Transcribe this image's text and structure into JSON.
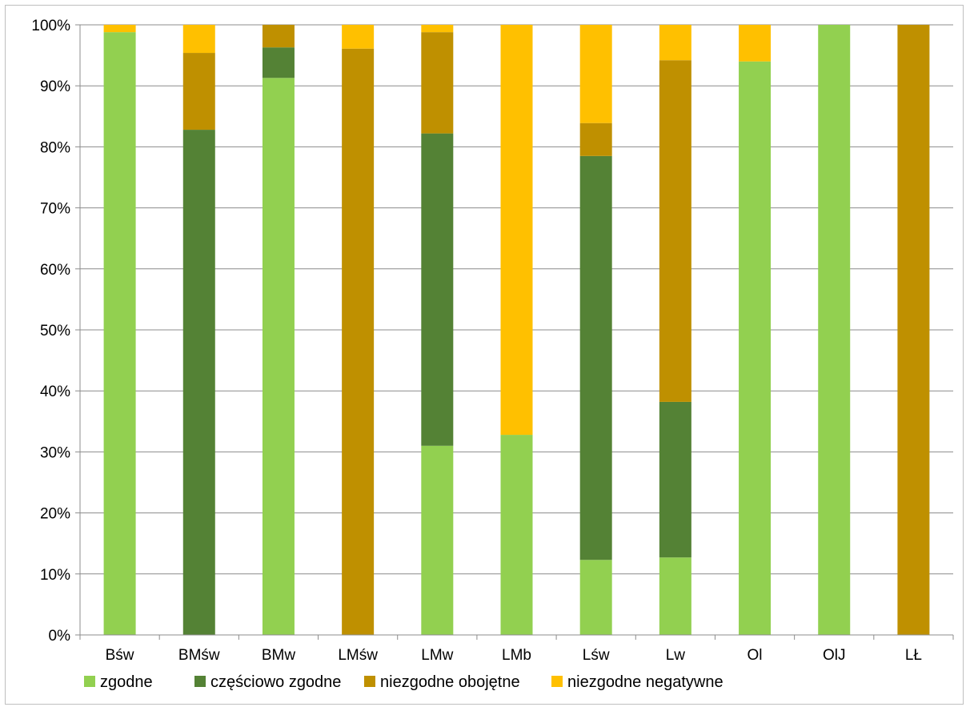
{
  "chart_data": {
    "type": "bar",
    "stacked": true,
    "normalized": true,
    "categories": [
      "Bśw",
      "BMśw",
      "BMw",
      "LMśw",
      "LMw",
      "LMb",
      "Lśw",
      "Lw",
      "Ol",
      "OlJ",
      "LŁ"
    ],
    "series": [
      {
        "name": "zgodne",
        "color": "#92d050",
        "values": [
          98.8,
          0,
          91.3,
          0,
          31.0,
          32.8,
          12.3,
          12.7,
          94.0,
          100,
          0
        ]
      },
      {
        "name": "częściowo zgodne",
        "color": "#548235",
        "values": [
          0,
          82.8,
          5.0,
          0,
          51.2,
          0,
          66.2,
          25.5,
          0,
          0,
          0
        ]
      },
      {
        "name": "niezgodne obojętne",
        "color": "#bf9000",
        "values": [
          0,
          12.6,
          3.7,
          96.1,
          16.6,
          0,
          5.4,
          56.0,
          0,
          0,
          100
        ]
      },
      {
        "name": "niezgodne negatywne",
        "color": "#ffc000",
        "values": [
          1.2,
          4.6,
          0,
          3.9,
          1.2,
          67.2,
          16.1,
          5.8,
          6.0,
          0,
          0
        ]
      }
    ],
    "yticks": [
      "0%",
      "10%",
      "20%",
      "30%",
      "40%",
      "50%",
      "60%",
      "70%",
      "80%",
      "90%",
      "100%"
    ],
    "ylim": [
      0,
      100
    ],
    "grid": true,
    "legend_position": "bottom"
  }
}
